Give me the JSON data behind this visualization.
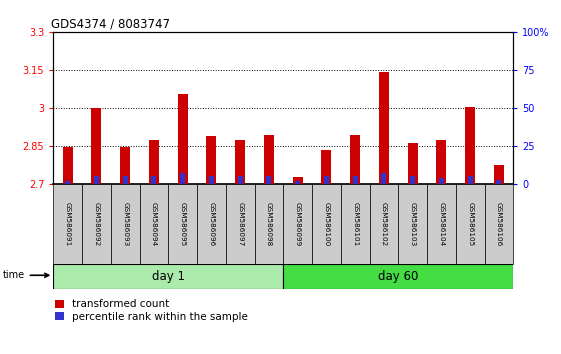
{
  "title": "GDS4374 / 8083747",
  "samples": [
    "GSM586091",
    "GSM586092",
    "GSM586093",
    "GSM586094",
    "GSM586095",
    "GSM586096",
    "GSM586097",
    "GSM586098",
    "GSM586099",
    "GSM586100",
    "GSM586101",
    "GSM586102",
    "GSM586103",
    "GSM586104",
    "GSM586105",
    "GSM586106"
  ],
  "red_values": [
    2.848,
    2.998,
    2.848,
    2.875,
    3.055,
    2.888,
    2.875,
    2.892,
    2.726,
    2.835,
    2.892,
    3.14,
    2.862,
    2.875,
    3.002,
    2.775
  ],
  "blue_values": [
    2,
    5,
    5,
    5,
    7,
    5,
    5,
    5,
    2,
    5,
    5,
    7,
    5,
    4,
    5,
    3
  ],
  "ylim_left": [
    2.7,
    3.3
  ],
  "ylim_right": [
    0,
    100
  ],
  "yticks_left": [
    2.7,
    2.85,
    3.0,
    3.15,
    3.3
  ],
  "yticks_right": [
    0,
    25,
    50,
    75,
    100
  ],
  "ytick_labels_left": [
    "2.7",
    "2.85",
    "3",
    "3.15",
    "3.3"
  ],
  "ytick_labels_right": [
    "0",
    "25",
    "50",
    "75",
    "100%"
  ],
  "grid_lines": [
    2.85,
    3.0,
    3.15
  ],
  "day1_samples": 8,
  "day60_samples": 8,
  "day1_label": "day 1",
  "day60_label": "day 60",
  "legend_red": "transformed count",
  "legend_blue": "percentile rank within the sample",
  "red_color": "#cc0000",
  "blue_color": "#3333cc",
  "day1_bg": "#aaeaaa",
  "day60_bg": "#44dd44",
  "xlabel_bg": "#cccccc",
  "time_label": "time",
  "base_value": 2.7
}
